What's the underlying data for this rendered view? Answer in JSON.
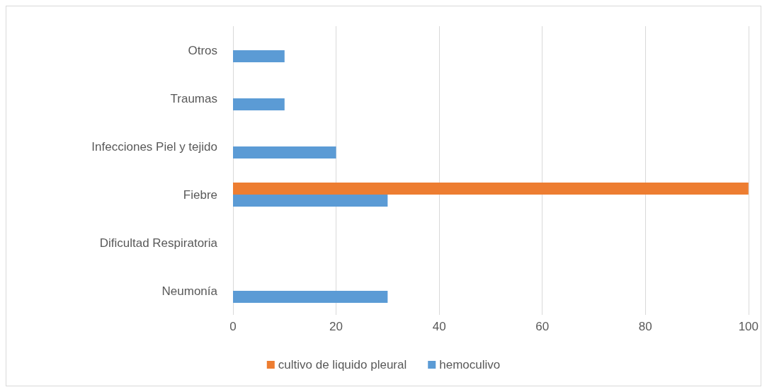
{
  "chart_data": {
    "type": "bar",
    "orientation": "horizontal",
    "categories": [
      "Otros",
      "Traumas",
      "Infecciones Piel y tejido",
      "Fiebre",
      "Dificultad Respiratoria",
      "Neumonía"
    ],
    "series": [
      {
        "name": "cultivo de liquido pleural",
        "color": "#ed7d31",
        "values": [
          null,
          null,
          null,
          100,
          null,
          null
        ]
      },
      {
        "name": "hemoculivo",
        "color": "#5b9bd5",
        "values": [
          10,
          10,
          20,
          30,
          null,
          30
        ]
      }
    ],
    "xlim": [
      0,
      100
    ],
    "xticks": [
      0,
      20,
      40,
      60,
      80,
      100
    ],
    "grid": "x",
    "legend": "bottom"
  }
}
